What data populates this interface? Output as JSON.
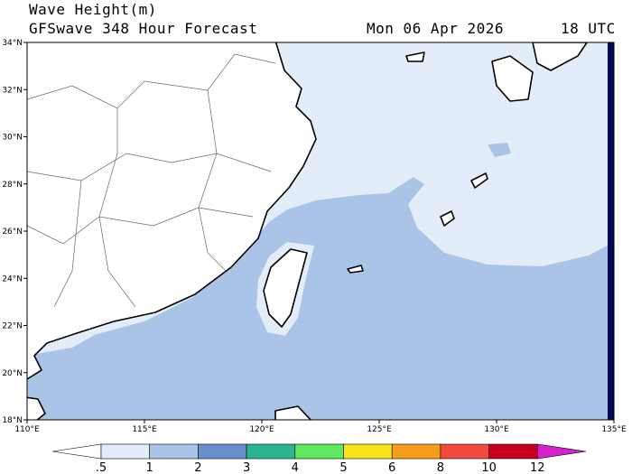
{
  "header": {
    "title": "Wave Height(m)",
    "subtitle": "GFSwave 348 Hour Forecast",
    "date": "Mon 06 Apr 2026",
    "time": "18 UTC"
  },
  "map": {
    "xlim": [
      110,
      135
    ],
    "ylim": [
      18,
      34
    ],
    "lat_ticks": [
      {
        "value": 18,
        "label": "18°N"
      },
      {
        "value": 20,
        "label": "20°N"
      },
      {
        "value": 22,
        "label": "22°N"
      },
      {
        "value": 24,
        "label": "24°N"
      },
      {
        "value": 26,
        "label": "26°N"
      },
      {
        "value": 28,
        "label": "28°N"
      },
      {
        "value": 30,
        "label": "30°N"
      },
      {
        "value": 32,
        "label": "32°N"
      },
      {
        "value": 34,
        "label": "34°N"
      }
    ],
    "lon_ticks": [
      {
        "value": 110,
        "label": "110°E"
      },
      {
        "value": 115,
        "label": "115°E"
      },
      {
        "value": 120,
        "label": "120°E"
      },
      {
        "value": 125,
        "label": "125°E"
      },
      {
        "value": 130,
        "label": "130°E"
      },
      {
        "value": 135,
        "label": "135°E"
      }
    ]
  },
  "colorbar": {
    "labels": [
      ".5",
      "1",
      "2",
      "3",
      "4",
      "5",
      "6",
      "8",
      "10",
      "12"
    ],
    "colors": [
      "#ffffff",
      "#e3edf9",
      "#a9c4e6",
      "#6a90cc",
      "#2bb48e",
      "#5fe860",
      "#f5e51a",
      "#f59d1a",
      "#f04a3c",
      "#c6001c",
      "#d622cc"
    ]
  }
}
